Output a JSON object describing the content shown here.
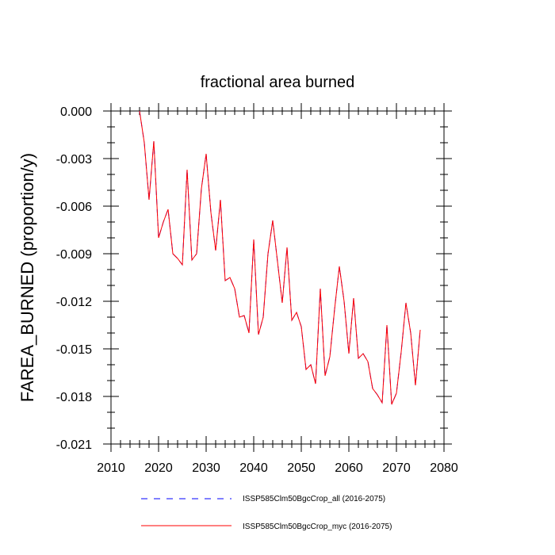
{
  "chart_data": {
    "type": "line",
    "title": "fractional area burned",
    "xlabel": "",
    "ylabel": "FAREA_BURNED  (proportion/y)",
    "xlim": [
      2010,
      2080
    ],
    "ylim": [
      -0.021,
      0.0
    ],
    "xticks": [
      2010,
      2020,
      2030,
      2040,
      2050,
      2060,
      2070,
      2080
    ],
    "xtick_labels": [
      "2010",
      "2020",
      "2030",
      "2040",
      "2050",
      "2060",
      "2070",
      "2080"
    ],
    "yticks": [
      0.0,
      -0.003,
      -0.006,
      -0.009,
      -0.012,
      -0.015,
      -0.018,
      -0.021
    ],
    "ytick_labels": [
      "0.000",
      "-0.003",
      "-0.006",
      "-0.009",
      "-0.012",
      "-0.015",
      "-0.018",
      "-0.021"
    ],
    "grid": false,
    "legend_position": "bottom",
    "x": [
      2016,
      2017,
      2018,
      2019,
      2020,
      2021,
      2022,
      2023,
      2024,
      2025,
      2026,
      2027,
      2028,
      2029,
      2030,
      2031,
      2032,
      2033,
      2034,
      2035,
      2036,
      2037,
      2038,
      2039,
      2040,
      2041,
      2042,
      2043,
      2044,
      2045,
      2046,
      2047,
      2048,
      2049,
      2050,
      2051,
      2052,
      2053,
      2054,
      2055,
      2056,
      2057,
      2058,
      2059,
      2060,
      2061,
      2062,
      2063,
      2064,
      2065,
      2066,
      2067,
      2068,
      2069,
      2070,
      2071,
      2072,
      2073,
      2074,
      2075
    ],
    "series": [
      {
        "name": "ISSP585Clm50BgcCrop_all (2016-2075)",
        "color": "#0000ff",
        "style": "dashed",
        "values": [
          0.0,
          -0.002,
          -0.0056,
          -0.0019,
          -0.008,
          -0.007,
          -0.0062,
          -0.009,
          -0.0093,
          -0.0097,
          -0.0037,
          -0.0094,
          -0.009,
          -0.0049,
          -0.0027,
          -0.0064,
          -0.0088,
          -0.0056,
          -0.0107,
          -0.0105,
          -0.0112,
          -0.013,
          -0.0129,
          -0.014,
          -0.0081,
          -0.0141,
          -0.013,
          -0.009,
          -0.0069,
          -0.0095,
          -0.0121,
          -0.0086,
          -0.0132,
          -0.0127,
          -0.0136,
          -0.0163,
          -0.016,
          -0.0172,
          -0.0112,
          -0.0167,
          -0.0155,
          -0.0125,
          -0.0098,
          -0.012,
          -0.0153,
          -0.0118,
          -0.0156,
          -0.0153,
          -0.0158,
          -0.0175,
          -0.0179,
          -0.0184,
          -0.0135,
          -0.0185,
          -0.0178,
          -0.0152,
          -0.0121,
          -0.014,
          -0.0173,
          -0.0138
        ]
      },
      {
        "name": "ISSP585Clm50BgcCrop_myc (2016-2075)",
        "color": "#ff0000",
        "style": "solid",
        "values": [
          0.0,
          -0.002,
          -0.0056,
          -0.0019,
          -0.008,
          -0.007,
          -0.0062,
          -0.009,
          -0.0093,
          -0.0097,
          -0.0037,
          -0.0094,
          -0.009,
          -0.0049,
          -0.0027,
          -0.0064,
          -0.0088,
          -0.0056,
          -0.0107,
          -0.0105,
          -0.0112,
          -0.013,
          -0.0129,
          -0.014,
          -0.0081,
          -0.0141,
          -0.013,
          -0.009,
          -0.0069,
          -0.0095,
          -0.0121,
          -0.0086,
          -0.0132,
          -0.0127,
          -0.0136,
          -0.0163,
          -0.016,
          -0.0172,
          -0.0112,
          -0.0167,
          -0.0155,
          -0.0125,
          -0.0098,
          -0.012,
          -0.0153,
          -0.0118,
          -0.0156,
          -0.0153,
          -0.0158,
          -0.0175,
          -0.0179,
          -0.0184,
          -0.0135,
          -0.0185,
          -0.0178,
          -0.0152,
          -0.0121,
          -0.014,
          -0.0173,
          -0.0138
        ]
      }
    ]
  }
}
